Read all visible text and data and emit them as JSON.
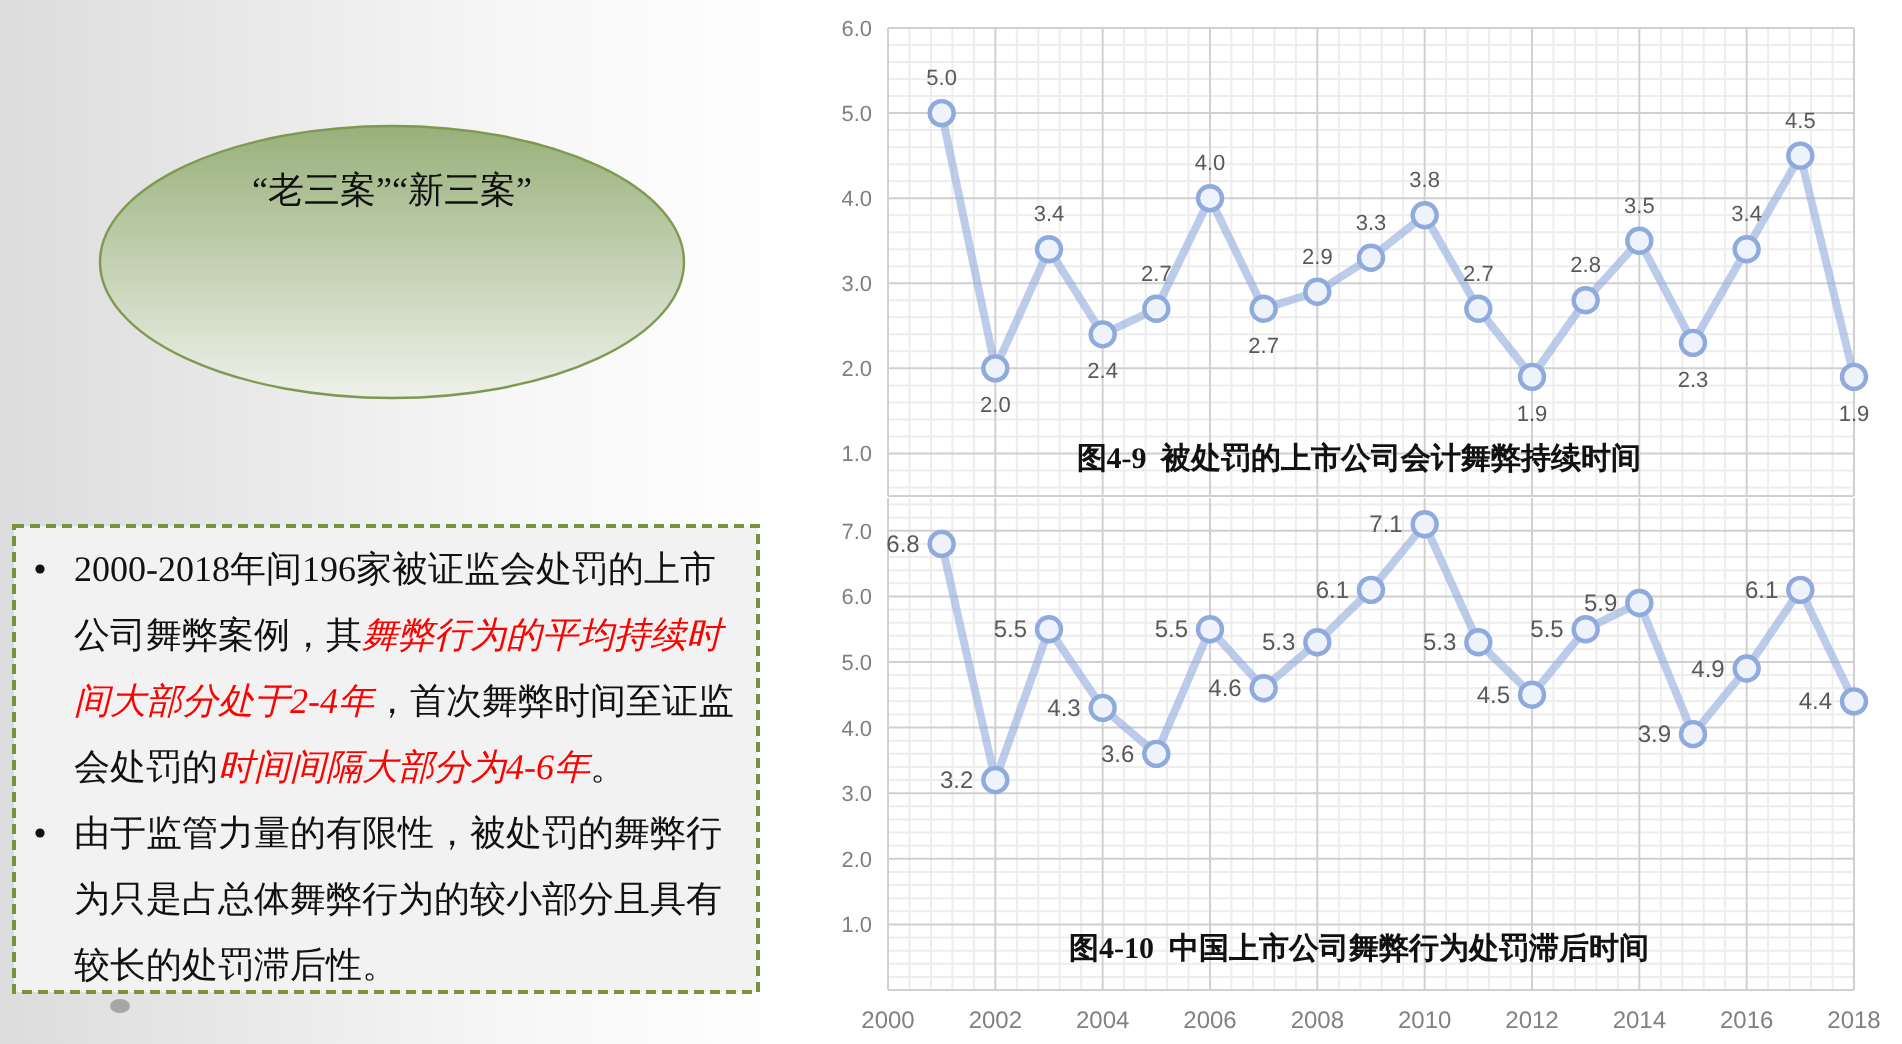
{
  "chart_data": [
    {
      "type": "other",
      "annotations": [
        "“老三案”“新三案”"
      ]
    },
    {
      "type": "line",
      "title": "图4-9  被处罚的上市公司会计舞弊持续时间",
      "x": [
        2001,
        2002,
        2003,
        2004,
        2005,
        2006,
        2007,
        2008,
        2009,
        2010,
        2011,
        2012,
        2013,
        2014,
        2015,
        2016,
        2017,
        2018
      ],
      "series": [
        {
          "color": "#8faadc",
          "values": [
            5.0,
            2.0,
            3.4,
            2.4,
            2.7,
            4.0,
            2.7,
            2.9,
            3.3,
            3.8,
            2.7,
            1.9,
            2.8,
            3.5,
            2.3,
            3.4,
            4.5,
            1.9
          ],
          "value_labels": [
            "5.0",
            "2.0",
            "3.4",
            "2.4",
            "2.7",
            "4.0",
            "2.7",
            "2.9",
            "3.3",
            "3.8",
            "2.7",
            "1.9",
            "2.8",
            "3.5",
            "2.3",
            "3.4",
            "4.5",
            "1.9"
          ]
        }
      ],
      "xlim": [
        2000,
        2018
      ],
      "xticks": [
        2000,
        2002,
        2004,
        2006,
        2008,
        2010,
        2012,
        2014,
        2016,
        2018
      ],
      "ylim": [
        0.5,
        6
      ],
      "yticks": [
        {
          "value": 1,
          "label": "1.0"
        },
        {
          "value": 2,
          "label": "2.0"
        },
        {
          "value": 3,
          "label": "3.0"
        },
        {
          "value": 4,
          "label": "4.0"
        },
        {
          "value": 5,
          "label": "5.0"
        },
        {
          "value": 6,
          "label": "6.0"
        }
      ],
      "grid": true,
      "marker": "circle",
      "tick_labels": "y"
    },
    {
      "type": "other",
      "annotations": [
        "2000-2018年间196家被证监会处罚的上市",
        "公司舞弊案例，其",
        "舞弊行为的平均持续时",
        "间大部分处于2-4年",
        "，首次舞弊时间至证监",
        "会处罚的",
        "时间间隔大部分为4-6年",
        "。",
        "由于监管力量的有限性，被处罚的舞弊行为只是占总体舞弊行为的较小部分且具有较长的处罚滞后性。"
      ],
      "colors": [
        "#111111",
        "#111111",
        "#ff0000",
        "#ff0000",
        "#111111",
        "#111111",
        "#ff0000",
        "#111111",
        "#111111"
      ]
    },
    {
      "type": "line",
      "title": "图4-10  中国上市公司舞弊行为处罚滞后时间",
      "x": [
        2001,
        2002,
        2003,
        2004,
        2005,
        2006,
        2007,
        2008,
        2009,
        2010,
        2011,
        2012,
        2013,
        2014,
        2015,
        2016,
        2017,
        2018
      ],
      "series": [
        {
          "color": "#8faadc",
          "values": [
            6.8,
            3.2,
            5.5,
            4.3,
            3.6,
            5.5,
            4.6,
            5.3,
            6.1,
            7.1,
            5.3,
            4.5,
            5.5,
            5.9,
            3.9,
            4.9,
            6.1,
            4.4
          ],
          "value_labels": [
            "6.8",
            "3.2",
            "5.5",
            "4.3",
            "3.6",
            "5.5",
            "4.6",
            "5.3",
            "6.1",
            "7.1",
            "5.3",
            "4.5",
            "5.5",
            "5.9",
            "3.9",
            "4.9",
            "6.1",
            "4.4"
          ]
        }
      ],
      "xlim": [
        2000,
        2018
      ],
      "xticks": [
        2000,
        2002,
        2004,
        2006,
        2008,
        2010,
        2012,
        2014,
        2016,
        2018
      ],
      "ylim": [
        0,
        7.5
      ],
      "yticks": [
        {
          "value": 1,
          "label": "1.0"
        },
        {
          "value": 2,
          "label": "2.0"
        },
        {
          "value": 3,
          "label": "3.0"
        },
        {
          "value": 4,
          "label": "4.0"
        },
        {
          "value": 5,
          "label": "5.0"
        },
        {
          "value": 6,
          "label": "6.0"
        },
        {
          "value": 7,
          "label": "7.0"
        }
      ],
      "grid": true,
      "marker": "circle"
    }
  ]
}
